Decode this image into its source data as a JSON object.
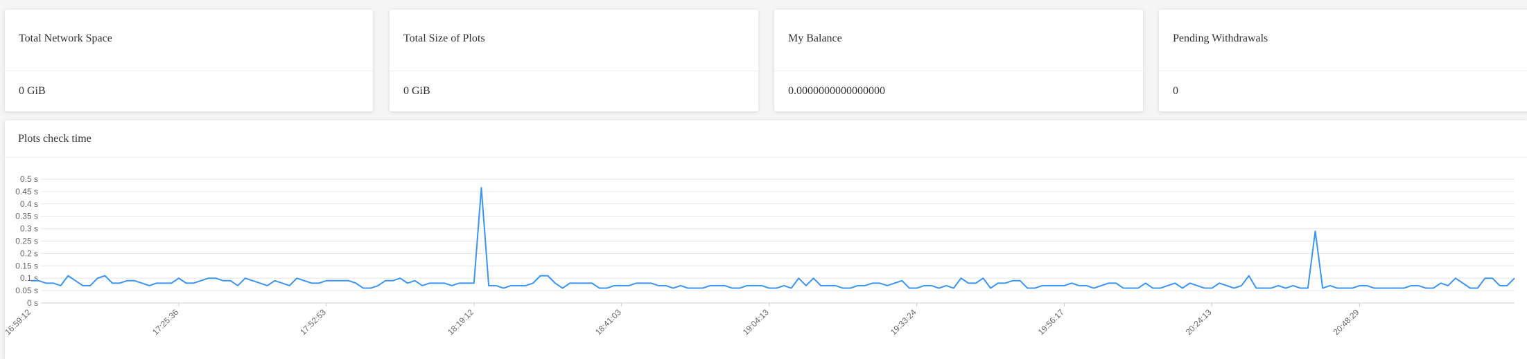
{
  "cards": [
    {
      "title": "Total Network Space",
      "value": "0 GiB"
    },
    {
      "title": "Total Size of Plots",
      "value": "0 GiB"
    },
    {
      "title": "My Balance",
      "value": "0.0000000000000000"
    },
    {
      "title": "Pending Withdrawals",
      "value": "0"
    }
  ],
  "chart_card": {
    "title": "Plots check time"
  },
  "chart_data": {
    "type": "line",
    "color": "#3a94f5",
    "grid": true,
    "ylim": [
      0,
      0.5
    ],
    "yticks": [
      {
        "value": 0,
        "label": "0 s"
      },
      {
        "value": 0.05,
        "label": "0.05 s"
      },
      {
        "value": 0.1,
        "label": "0.1 s"
      },
      {
        "value": 0.15,
        "label": "0.15 s"
      },
      {
        "value": 0.2,
        "label": "0.2 s"
      },
      {
        "value": 0.25,
        "label": "0.25 s"
      },
      {
        "value": 0.3,
        "label": "0.3 s"
      },
      {
        "value": 0.35,
        "label": "0.35 s"
      },
      {
        "value": 0.4,
        "label": "0.4 s"
      },
      {
        "value": 0.45,
        "label": "0.45 s"
      },
      {
        "value": 0.5,
        "label": "0.5 s"
      }
    ],
    "categories": [
      "16:59:12",
      null,
      null,
      null,
      null,
      null,
      null,
      null,
      null,
      null,
      null,
      null,
      null,
      null,
      null,
      null,
      null,
      null,
      null,
      null,
      "17:25:36",
      null,
      null,
      null,
      null,
      null,
      null,
      null,
      null,
      null,
      null,
      null,
      null,
      null,
      null,
      null,
      null,
      null,
      null,
      null,
      "17:52:53",
      null,
      null,
      null,
      null,
      null,
      null,
      null,
      null,
      null,
      null,
      null,
      null,
      null,
      null,
      null,
      null,
      null,
      null,
      null,
      "18:19:12",
      null,
      null,
      null,
      null,
      null,
      null,
      null,
      null,
      null,
      null,
      null,
      null,
      null,
      null,
      null,
      null,
      null,
      null,
      null,
      "18:41:03",
      null,
      null,
      null,
      null,
      null,
      null,
      null,
      null,
      null,
      null,
      null,
      null,
      null,
      null,
      null,
      null,
      null,
      null,
      null,
      "19:04:13",
      null,
      null,
      null,
      null,
      null,
      null,
      null,
      null,
      null,
      null,
      null,
      null,
      null,
      null,
      null,
      null,
      null,
      null,
      null,
      "19:33:24",
      null,
      null,
      null,
      null,
      null,
      null,
      null,
      null,
      null,
      null,
      null,
      null,
      null,
      null,
      null,
      null,
      null,
      null,
      null,
      "19:56:17",
      null,
      null,
      null,
      null,
      null,
      null,
      null,
      null,
      null,
      null,
      null,
      null,
      null,
      null,
      null,
      null,
      null,
      null,
      null,
      "20:24:13",
      null,
      null,
      null,
      null,
      null,
      null,
      null,
      null,
      null,
      null,
      null,
      null,
      null,
      null,
      null,
      null,
      null,
      null,
      null,
      "20:48:29",
      null,
      null,
      null,
      null,
      null,
      null,
      null,
      null,
      null,
      null,
      null,
      null,
      null,
      null,
      null,
      null,
      null,
      null,
      null,
      null,
      null
    ],
    "values": [
      0.09,
      0.09,
      0.08,
      0.08,
      0.07,
      0.11,
      0.09,
      0.07,
      0.07,
      0.1,
      0.11,
      0.08,
      0.08,
      0.09,
      0.09,
      0.08,
      0.07,
      0.08,
      0.08,
      0.08,
      0.1,
      0.08,
      0.08,
      0.09,
      0.1,
      0.1,
      0.09,
      0.09,
      0.07,
      0.1,
      0.09,
      0.08,
      0.07,
      0.09,
      0.08,
      0.07,
      0.1,
      0.09,
      0.08,
      0.08,
      0.09,
      0.09,
      0.09,
      0.09,
      0.08,
      0.06,
      0.06,
      0.07,
      0.09,
      0.09,
      0.1,
      0.08,
      0.09,
      0.07,
      0.08,
      0.08,
      0.08,
      0.07,
      0.08,
      0.08,
      0.08,
      0.465,
      0.07,
      0.07,
      0.06,
      0.07,
      0.07,
      0.07,
      0.08,
      0.11,
      0.11,
      0.08,
      0.06,
      0.08,
      0.08,
      0.08,
      0.08,
      0.06,
      0.06,
      0.07,
      0.07,
      0.07,
      0.08,
      0.08,
      0.08,
      0.07,
      0.07,
      0.06,
      0.07,
      0.06,
      0.06,
      0.06,
      0.07,
      0.07,
      0.07,
      0.06,
      0.06,
      0.07,
      0.07,
      0.07,
      0.06,
      0.06,
      0.07,
      0.06,
      0.1,
      0.07,
      0.1,
      0.07,
      0.07,
      0.07,
      0.06,
      0.06,
      0.07,
      0.07,
      0.08,
      0.08,
      0.07,
      0.08,
      0.09,
      0.06,
      0.06,
      0.07,
      0.07,
      0.06,
      0.07,
      0.06,
      0.1,
      0.08,
      0.08,
      0.1,
      0.06,
      0.08,
      0.08,
      0.09,
      0.09,
      0.06,
      0.06,
      0.07,
      0.07,
      0.07,
      0.07,
      0.08,
      0.07,
      0.07,
      0.06,
      0.07,
      0.08,
      0.08,
      0.06,
      0.06,
      0.06,
      0.08,
      0.06,
      0.06,
      0.07,
      0.08,
      0.06,
      0.08,
      0.07,
      0.06,
      0.06,
      0.08,
      0.07,
      0.06,
      0.07,
      0.11,
      0.06,
      0.06,
      0.06,
      0.07,
      0.06,
      0.07,
      0.06,
      0.06,
      0.29,
      0.06,
      0.07,
      0.06,
      0.06,
      0.06,
      0.07,
      0.07,
      0.06,
      0.06,
      0.06,
      0.06,
      0.06,
      0.07,
      0.07,
      0.06,
      0.06,
      0.08,
      0.07,
      0.1,
      0.08,
      0.06,
      0.06,
      0.1,
      0.1,
      0.07,
      0.07,
      0.1
    ]
  }
}
